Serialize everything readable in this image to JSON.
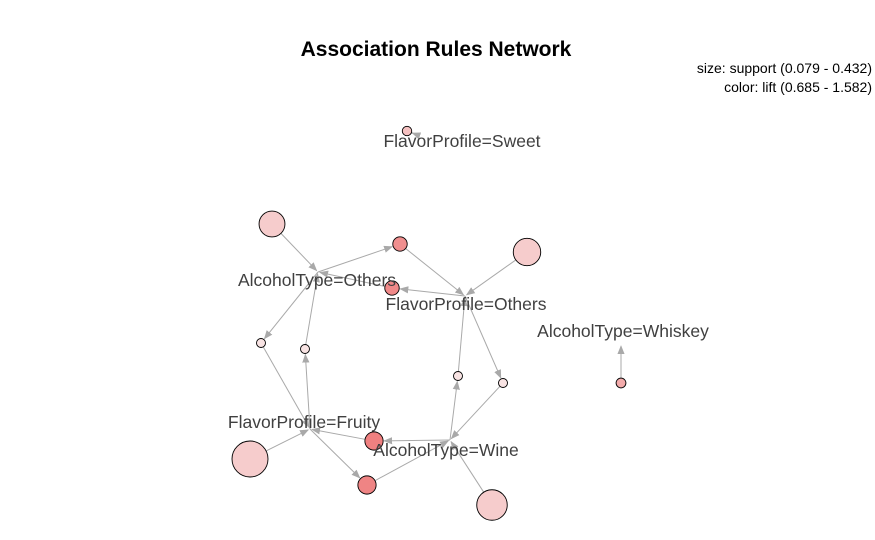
{
  "title": "Association Rules Network",
  "legend": {
    "size_text": "size: support (0.079 - 0.432)",
    "color_text": "color: lift (0.685 - 1.582)"
  },
  "colors": {
    "edge": "#a9a9a9",
    "label": "#404040",
    "lift_low": "#f8e4e4",
    "lift_high": "#ef8080"
  },
  "items": [
    {
      "id": "sweet",
      "label": "FlavorProfile=Sweet"
    },
    {
      "id": "alc_others",
      "label": "AlcoholType=Others"
    },
    {
      "id": "flav_others",
      "label": "FlavorProfile=Others"
    },
    {
      "id": "whiskey",
      "label": "AlcoholType=Whiskey"
    },
    {
      "id": "fruity",
      "label": "FlavorProfile=Fruity"
    },
    {
      "id": "wine",
      "label": "AlcoholType=Wine"
    }
  ],
  "rules": [
    {
      "id": "r1",
      "lhs": "sweet",
      "rhs": "sweet",
      "support": 0.085,
      "lift": 1.0
    },
    {
      "id": "r2",
      "lhs": "alc_others",
      "rhs": "flav_others",
      "support": 0.15,
      "lift": 1.45
    },
    {
      "id": "r3",
      "lhs": "flav_others",
      "rhs": "alc_others",
      "support": 0.15,
      "lift": 1.5
    },
    {
      "id": "r4",
      "lhs": "fruity",
      "rhs": "alc_others",
      "support": 0.079,
      "lift": 0.69
    },
    {
      "id": "r5",
      "lhs": "alc_others",
      "rhs": "fruity",
      "support": 0.079,
      "lift": 0.69
    },
    {
      "id": "r6",
      "lhs": "wine",
      "rhs": "flav_others",
      "support": 0.079,
      "lift": 0.69
    },
    {
      "id": "r7",
      "lhs": "flav_others",
      "rhs": "wine",
      "support": 0.079,
      "lift": 0.69
    },
    {
      "id": "r8",
      "lhs": "wine",
      "rhs": "fruity",
      "support": 0.2,
      "lift": 1.582
    },
    {
      "id": "r9",
      "lhs": "fruity",
      "rhs": "wine",
      "support": 0.2,
      "lift": 1.55
    },
    {
      "id": "r10",
      "lhs": null,
      "rhs": "alc_others",
      "support": 0.3,
      "lift": 0.9
    },
    {
      "id": "r11",
      "lhs": null,
      "rhs": "flav_others",
      "support": 0.32,
      "lift": 0.9
    },
    {
      "id": "r12",
      "lhs": null,
      "rhs": "fruity",
      "support": 0.432,
      "lift": 0.9
    },
    {
      "id": "r13",
      "lhs": null,
      "rhs": "wine",
      "support": 0.36,
      "lift": 0.9
    },
    {
      "id": "r14",
      "lhs": null,
      "rhs": "whiskey",
      "support": 0.09,
      "lift": 1.2
    }
  ]
}
